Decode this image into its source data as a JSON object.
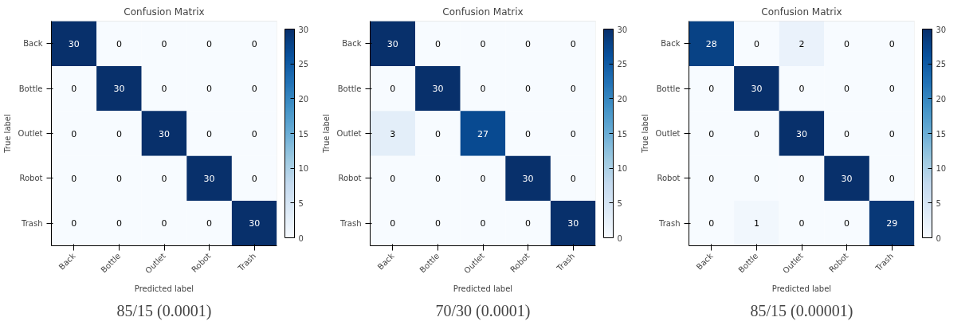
{
  "chart_data": [
    {
      "type": "heatmap",
      "title": "Confusion Matrix",
      "xlabel": "Predicted label",
      "ylabel": "True label",
      "categories": [
        "Back",
        "Bottle",
        "Outlet",
        "Robot",
        "Trash"
      ],
      "y_categories": [
        "Back",
        "Bottle",
        "Outlet",
        "Robot",
        "Trash"
      ],
      "cells": [
        [
          30,
          0,
          0,
          0,
          0
        ],
        [
          0,
          30,
          0,
          0,
          0
        ],
        [
          0,
          0,
          30,
          0,
          0
        ],
        [
          0,
          0,
          0,
          30,
          0
        ],
        [
          0,
          0,
          0,
          0,
          30
        ]
      ],
      "clim": [
        0,
        30
      ],
      "cticks": [
        0,
        5,
        10,
        15,
        20,
        25,
        30
      ],
      "data_labels": true,
      "grid": false,
      "annotations": [
        "85/15 (0.0001)"
      ]
    },
    {
      "type": "heatmap",
      "title": "Confusion Matrix",
      "xlabel": "Predicted label",
      "ylabel": "True label",
      "categories": [
        "Back",
        "Bottle",
        "Outlet",
        "Robot",
        "Trash"
      ],
      "y_categories": [
        "Back",
        "Bottle",
        "Outlet",
        "Robot",
        "Trash"
      ],
      "cells": [
        [
          30,
          0,
          0,
          0,
          0
        ],
        [
          0,
          30,
          0,
          0,
          0
        ],
        [
          3,
          0,
          27,
          0,
          0
        ],
        [
          0,
          0,
          0,
          30,
          0
        ],
        [
          0,
          0,
          0,
          0,
          30
        ]
      ],
      "clim": [
        0,
        30
      ],
      "cticks": [
        0,
        5,
        10,
        15,
        20,
        25,
        30
      ],
      "data_labels": true,
      "grid": false,
      "annotations": [
        "70/30 (0.0001)"
      ]
    },
    {
      "type": "heatmap",
      "title": "Confusion Matrix",
      "xlabel": "Predicted label",
      "ylabel": "True label",
      "categories": [
        "Back",
        "Bottle",
        "Outlet",
        "Robot",
        "Trash"
      ],
      "y_categories": [
        "Back",
        "Bottle",
        "Outlet",
        "Robot",
        "Trash"
      ],
      "cells": [
        [
          28,
          0,
          2,
          0,
          0
        ],
        [
          0,
          30,
          0,
          0,
          0
        ],
        [
          0,
          0,
          30,
          0,
          0
        ],
        [
          0,
          0,
          0,
          30,
          0
        ],
        [
          0,
          1,
          0,
          0,
          29
        ]
      ],
      "clim": [
        0,
        30
      ],
      "cticks": [
        0,
        5,
        10,
        15,
        20,
        25,
        30
      ],
      "data_labels": true,
      "grid": false,
      "annotations": [
        "85/15 (0.00001)"
      ]
    }
  ]
}
